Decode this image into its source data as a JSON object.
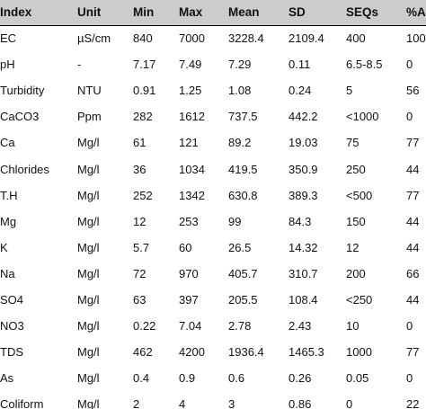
{
  "table": {
    "headers": [
      "Index",
      "Unit",
      "Min",
      "Max",
      "Mean",
      "SD",
      "SEQs",
      "%Age"
    ],
    "rows": [
      [
        "EC",
        "µS/cm",
        "840",
        "7000",
        "3228.4",
        "2109.4",
        "400",
        "100"
      ],
      [
        "pH",
        "-",
        "7.17",
        "7.49",
        "7.29",
        "0.11",
        "6.5-8.5",
        "0"
      ],
      [
        "Turbidity",
        "NTU",
        "0.91",
        "1.25",
        "1.08",
        "0.24",
        "5",
        "56"
      ],
      [
        "CaCO3",
        "Ppm",
        "282",
        "1612",
        "737.5",
        "442.2",
        "<1000",
        "0"
      ],
      [
        "Ca",
        "Mg/l",
        "61",
        "121",
        "89.2",
        "19.03",
        "75",
        "77"
      ],
      [
        "Chlorides",
        "Mg/l",
        "36",
        "1034",
        "419.5",
        "350.9",
        "250",
        "44"
      ],
      [
        "T.H",
        "Mg/l",
        "252",
        "1342",
        "630.8",
        "389.3",
        "<500",
        "77"
      ],
      [
        "Mg",
        "Mg/l",
        "12",
        "253",
        "99",
        "84.3",
        "150",
        "44"
      ],
      [
        "K",
        "Mg/l",
        "5.7",
        "60",
        "26.5",
        "14.32",
        "12",
        "44"
      ],
      [
        "Na",
        "Mg/l",
        "72",
        "970",
        "405.7",
        "310.7",
        "200",
        "66"
      ],
      [
        "SO4",
        "Mg/l",
        "63",
        "397",
        "205.5",
        "108.4",
        "<250",
        "44"
      ],
      [
        "NO3",
        "Mg/l",
        "0.22",
        "7.04",
        "2.78",
        "2.43",
        "10",
        "0"
      ],
      [
        "TDS",
        "Mg/l",
        "462",
        "4200",
        "1936.4",
        "1465.3",
        "1000",
        "77"
      ],
      [
        "As",
        "Mg/l",
        "0.4",
        "0.9",
        "0.6",
        "0.26",
        "0.05",
        "0"
      ],
      [
        "Coliform",
        "Mg/l",
        "2",
        "4",
        "3",
        "0.86",
        "0",
        "22"
      ]
    ]
  }
}
